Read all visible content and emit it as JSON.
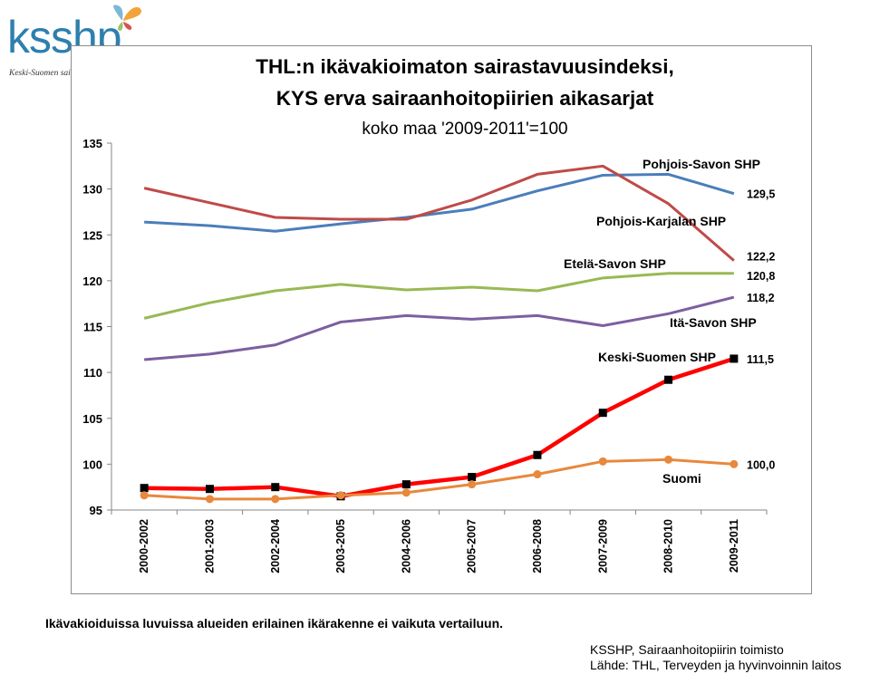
{
  "logo": {
    "brand": "ksshp",
    "tagline": "Keski-Suomen sairaanhoitopiiri"
  },
  "footnote": "Ikävakioiduissa luvuissa alueiden erilainen ikärakenne ei vaikuta vertailuun.",
  "source": {
    "line1": "KSSHP, Sairaanhoitopiirin toimisto",
    "line2": "Lähde:  THL, Terveyden ja hyvinvoinnin laitos"
  },
  "chart_data": {
    "type": "line",
    "title": "THL:n ikävakioimaton sairastavuusindeksi,",
    "title_line2": "KYS erva sairaanhoitopiirien aikasarjat",
    "subtitle": "koko maa '2009-2011'=100",
    "xlabel": "",
    "ylabel": "",
    "ylim": [
      95,
      135
    ],
    "yticks": [
      95,
      100,
      105,
      110,
      115,
      120,
      125,
      130,
      135
    ],
    "grid": false,
    "categories": [
      "2000-2002",
      "2001-2003",
      "2002-2004",
      "2003-2005",
      "2004-2006",
      "2005-2007",
      "2006-2008",
      "2007-2009",
      "2008-2010",
      "2009-2011"
    ],
    "series": [
      {
        "name": "Pohjois-Savon SHP",
        "color": "#4a7ebb",
        "marker": "none",
        "values": [
          126.4,
          126.0,
          125.4,
          126.2,
          126.9,
          127.8,
          129.8,
          131.5,
          131.6,
          129.5
        ],
        "end_label": "129,5"
      },
      {
        "name": "Pohjois-Karjalan SHP",
        "color": "#be4b48",
        "marker": "none",
        "values": [
          130.1,
          128.5,
          126.9,
          126.7,
          126.7,
          128.8,
          131.6,
          132.5,
          128.4,
          122.2
        ],
        "end_label": "122,2"
      },
      {
        "name": "Etelä-Savon SHP",
        "color": "#98b954",
        "marker": "none",
        "values": [
          115.9,
          117.6,
          118.9,
          119.6,
          119.0,
          119.3,
          118.9,
          120.3,
          120.8,
          120.8
        ],
        "end_label": "120,8"
      },
      {
        "name": "Itä-Savon SHP",
        "color": "#7d5fa0",
        "marker": "none",
        "values": [
          111.4,
          112.0,
          113.0,
          115.5,
          116.2,
          115.8,
          116.2,
          115.1,
          116.4,
          118.2
        ],
        "end_label": "118,2"
      },
      {
        "name": "Keski-Suomen SHP",
        "color": "#ff0000",
        "marker": "square",
        "values": [
          97.4,
          97.3,
          97.5,
          96.5,
          97.8,
          98.6,
          101.0,
          105.6,
          109.2,
          111.5
        ],
        "end_label": "111,5"
      },
      {
        "name": "Suomi",
        "color": "#e8883c",
        "marker": "circle",
        "values": [
          96.6,
          96.2,
          96.2,
          96.6,
          96.9,
          97.8,
          98.9,
          100.3,
          100.5,
          100.0
        ],
        "end_label": "100,0"
      }
    ]
  }
}
